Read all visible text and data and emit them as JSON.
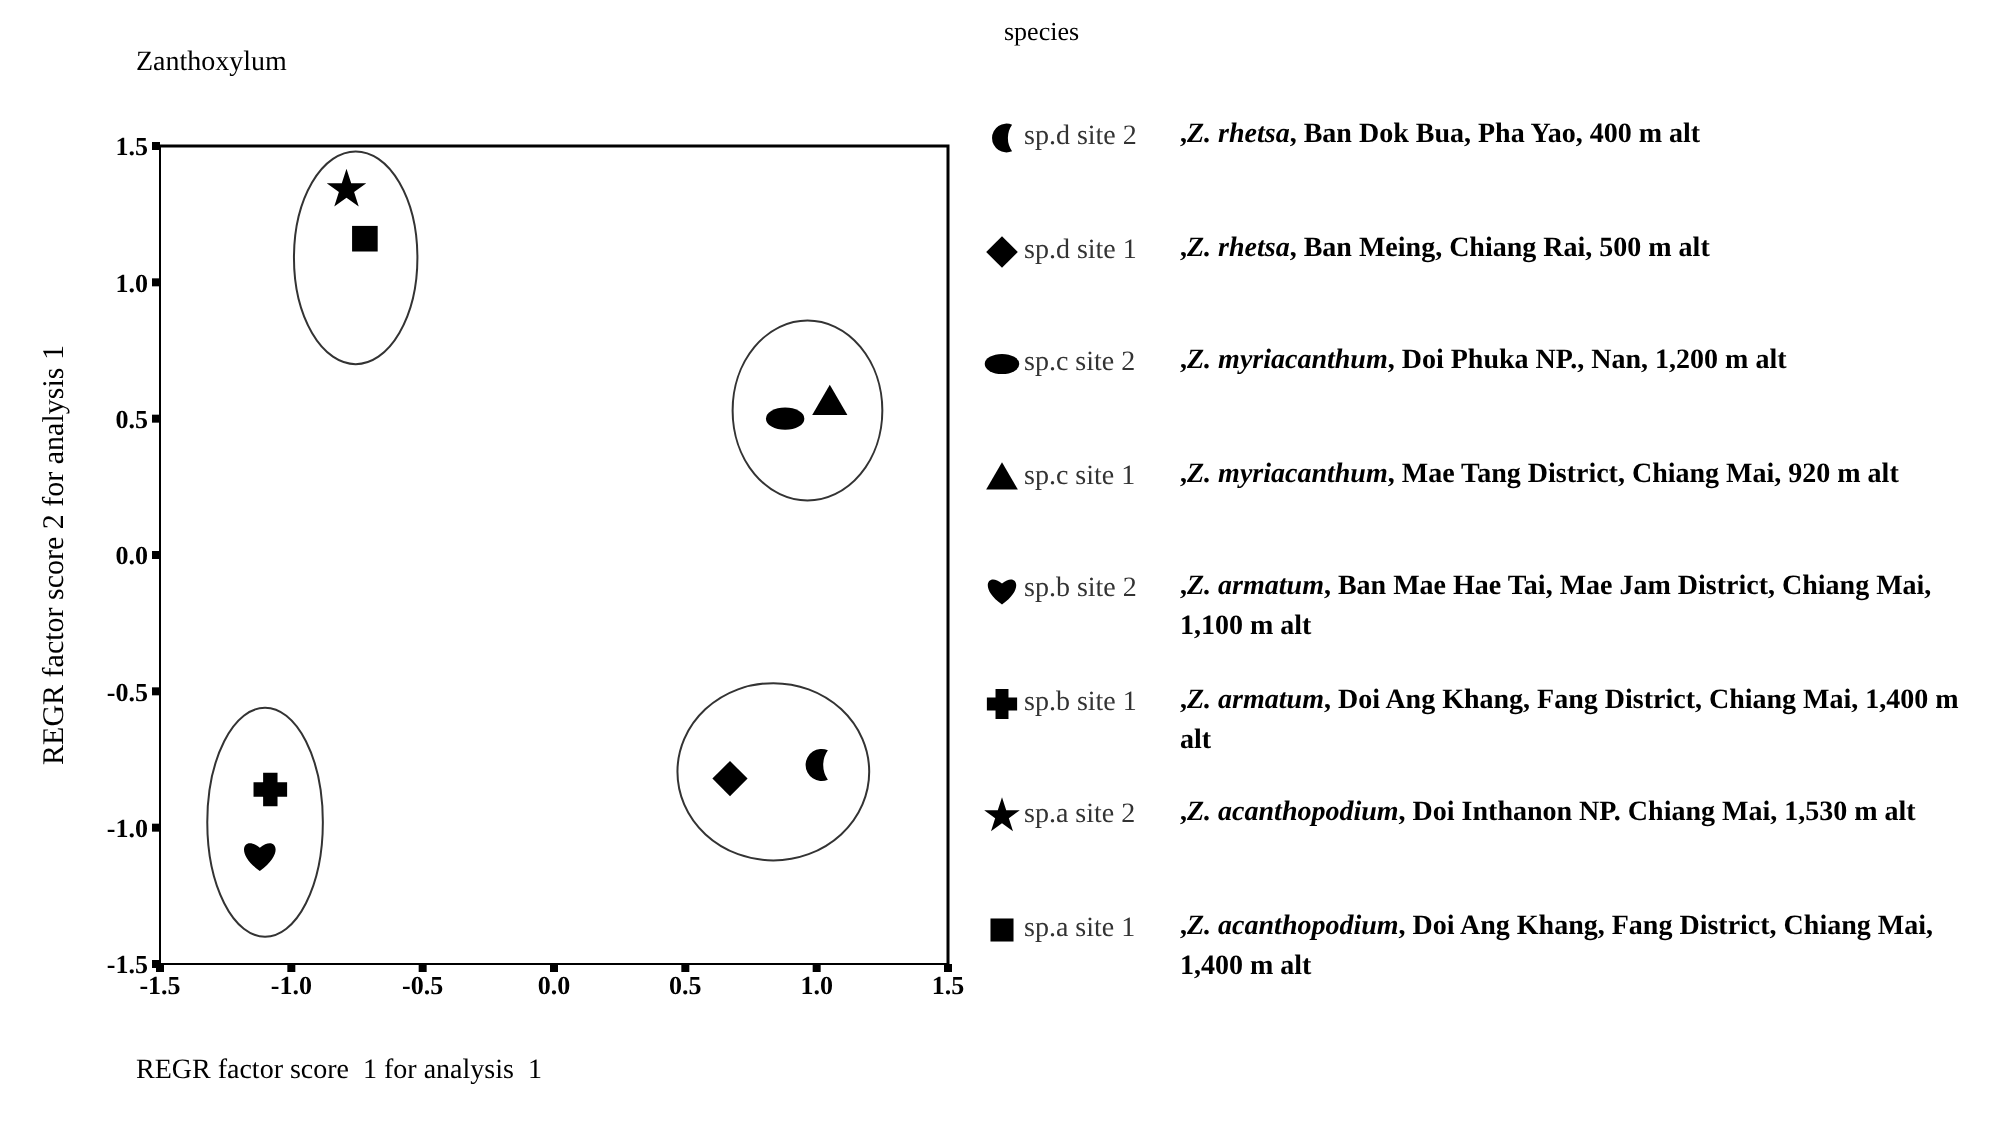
{
  "chart_data": {
    "type": "scatter",
    "title": "Zanthoxylum",
    "legend_title": "species",
    "xlabel": "REGR factor score  1 for analysis  1",
    "ylabel": "REGR factor score   2 for analysis   1",
    "xlim": [
      -1.5,
      1.5
    ],
    "ylim": [
      -1.5,
      1.5
    ],
    "xticks": [
      -1.5,
      {
        "value": -1,
        "label": "-1.0"
      },
      -0.5,
      {
        "value": 0,
        "label": "0.0"
      },
      0.5,
      {
        "value": 1,
        "label": "1.0"
      },
      1.5
    ],
    "yticks": [
      -1.5,
      {
        "value": -1,
        "label": "-1.0"
      },
      -0.5,
      {
        "value": 0,
        "label": "0.0"
      },
      0.5,
      {
        "value": 1,
        "label": "1.0"
      },
      1.5
    ],
    "grid": false,
    "legend": "right",
    "annotations": [
      ",Z. rhetsa, Ban Dok Bua, Pha Yao, 400 m alt",
      ",Z. rhetsa, Ban Meing, Chiang Rai, 500 m alt",
      ",Z. myriacanthum, Doi Phuka NP., Nan, 1,200 m alt",
      ",Z. myriacanthum, Mae Tang District, Chiang Mai, 920 m alt",
      ",Z. armatum, Ban Mae Hae Tai, Mae Jam District, Chiang Mai, 1,100 m alt",
      ",Z. armatum, Doi Ang Khang, Fang District,  Chiang Mai, 1,400 m alt",
      ",Z. acanthopodium, Doi Inthanon NP. Chiang Mai, 1,530 m alt",
      ",Z. acanthopodium, Doi Ang Khang, Fang District, Chiang Mai, 1,400 m alt"
    ],
    "series": [
      {
        "name": "sp.d site 2",
        "color": "#000000",
        "x": [
          1.0
        ],
        "values": [
          -0.77
        ]
      },
      {
        "name": "sp.d site 1",
        "color": "#000000",
        "marker": "diamond",
        "x": [
          0.67
        ],
        "values": [
          -0.82
        ]
      },
      {
        "name": "sp.c site 2",
        "color": "#000000",
        "marker": "circle",
        "x": [
          0.88
        ],
        "values": [
          0.5
        ]
      },
      {
        "name": "sp.c site 1",
        "color": "#000000",
        "marker": "triangle",
        "x": [
          1.05
        ],
        "values": [
          0.56
        ]
      },
      {
        "name": "sp.b site 2",
        "color": "#000000",
        "x": [
          -1.12
        ],
        "values": [
          -1.1
        ]
      },
      {
        "name": "sp.b site 1",
        "color": "#000000",
        "marker": "cross",
        "x": [
          -1.08
        ],
        "values": [
          -0.86
        ]
      },
      {
        "name": "sp.a site 2",
        "color": "#000000",
        "marker": "star",
        "x": [
          -0.79
        ],
        "values": [
          1.34
        ]
      },
      {
        "name": "sp.a site 1",
        "color": "#000000",
        "marker": "square",
        "x": [
          -0.72
        ],
        "values": [
          1.16
        ]
      }
    ]
  }
}
